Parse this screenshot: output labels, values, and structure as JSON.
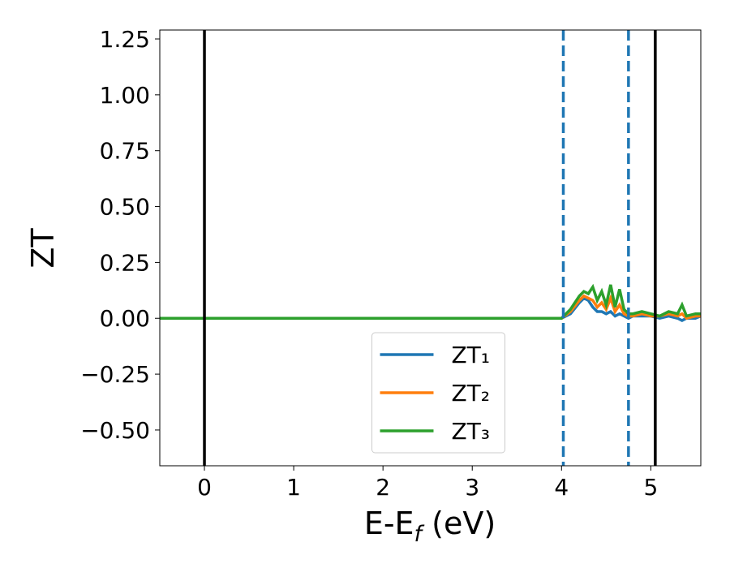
{
  "chart_data": {
    "type": "line",
    "ylabel": "ZT",
    "xlabel": [
      "E-E",
      "f",
      " (eV)"
    ],
    "x": [
      -0.5,
      4.0,
      4.1,
      4.2,
      4.25,
      4.3,
      4.35,
      4.4,
      4.45,
      4.5,
      4.55,
      4.6,
      4.65,
      4.7,
      4.75,
      4.8,
      4.9,
      5.0,
      5.1,
      5.2,
      5.3,
      5.35,
      5.4,
      5.5,
      5.56
    ],
    "series": [
      {
        "name": "ZT₁",
        "color": "#1f77b4",
        "values": [
          0,
          0,
          0.02,
          0.07,
          0.09,
          0.08,
          0.05,
          0.03,
          0.03,
          0.02,
          0.03,
          0.01,
          0.02,
          0.01,
          0,
          0.01,
          0.01,
          0.01,
          0,
          0.01,
          0,
          -0.01,
          0,
          0,
          0.01
        ]
      },
      {
        "name": "ZT₂",
        "color": "#ff7f0e",
        "values": [
          0,
          0,
          0.03,
          0.08,
          0.1,
          0.09,
          0.08,
          0.05,
          0.07,
          0.04,
          0.09,
          0.03,
          0.06,
          0.02,
          0.01,
          0.01,
          0.02,
          0.01,
          0.01,
          0.02,
          0.01,
          0.02,
          0,
          0.01,
          0.01
        ]
      },
      {
        "name": "ZT₃",
        "color": "#2ca02c",
        "values": [
          0,
          0,
          0.04,
          0.1,
          0.12,
          0.11,
          0.14,
          0.08,
          0.12,
          0.06,
          0.15,
          0.05,
          0.13,
          0.04,
          0.02,
          0.02,
          0.03,
          0.02,
          0.01,
          0.03,
          0.02,
          0.06,
          0.01,
          0.02,
          0.02
        ]
      }
    ],
    "vlines": [
      {
        "x": 0,
        "color": "#000000",
        "dashed": false
      },
      {
        "x": 5.05,
        "color": "#000000",
        "dashed": false
      },
      {
        "x": 4.02,
        "color": "#1f77b4",
        "dashed": true
      },
      {
        "x": 4.75,
        "color": "#1f77b4",
        "dashed": true
      }
    ],
    "xlim": [
      -0.5,
      5.56
    ],
    "xticks": [
      0,
      1,
      2,
      3,
      4,
      5
    ],
    "ylim": [
      -0.66,
      1.29
    ],
    "yticks": [
      {
        "value": -0.5,
        "label": "−0.50"
      },
      {
        "value": -0.25,
        "label": "−0.25"
      },
      {
        "value": 0,
        "label": "0.00"
      },
      {
        "value": 0.25,
        "label": "0.25"
      },
      {
        "value": 0.5,
        "label": "0.50"
      },
      {
        "value": 0.75,
        "label": "0.75"
      },
      {
        "value": 1,
        "label": "1.00"
      },
      {
        "value": 1.25,
        "label": "1.25"
      }
    ],
    "legend": "lower center",
    "grid": false
  }
}
